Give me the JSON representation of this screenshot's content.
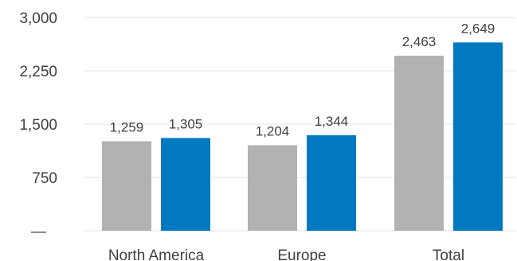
{
  "chart_data": {
    "type": "bar",
    "categories": [
      "North America",
      "Europe",
      "Total"
    ],
    "series": [
      {
        "values": [
          1259,
          1204,
          2463
        ],
        "color": "#b2b2b2"
      },
      {
        "values": [
          1305,
          1344,
          2649
        ],
        "color": "#0079c1"
      }
    ],
    "data_labels": [
      [
        "1,259",
        "1,204",
        "2,463"
      ],
      [
        "1,305",
        "1,344",
        "2,649"
      ]
    ],
    "ylim": [
      0,
      3000
    ],
    "yticks": [
      0,
      750,
      1500,
      2250,
      3000
    ],
    "ytick_labels": [
      "—",
      "750",
      "1,500",
      "2,250",
      "3,000"
    ],
    "grid": true,
    "legend": "none"
  }
}
